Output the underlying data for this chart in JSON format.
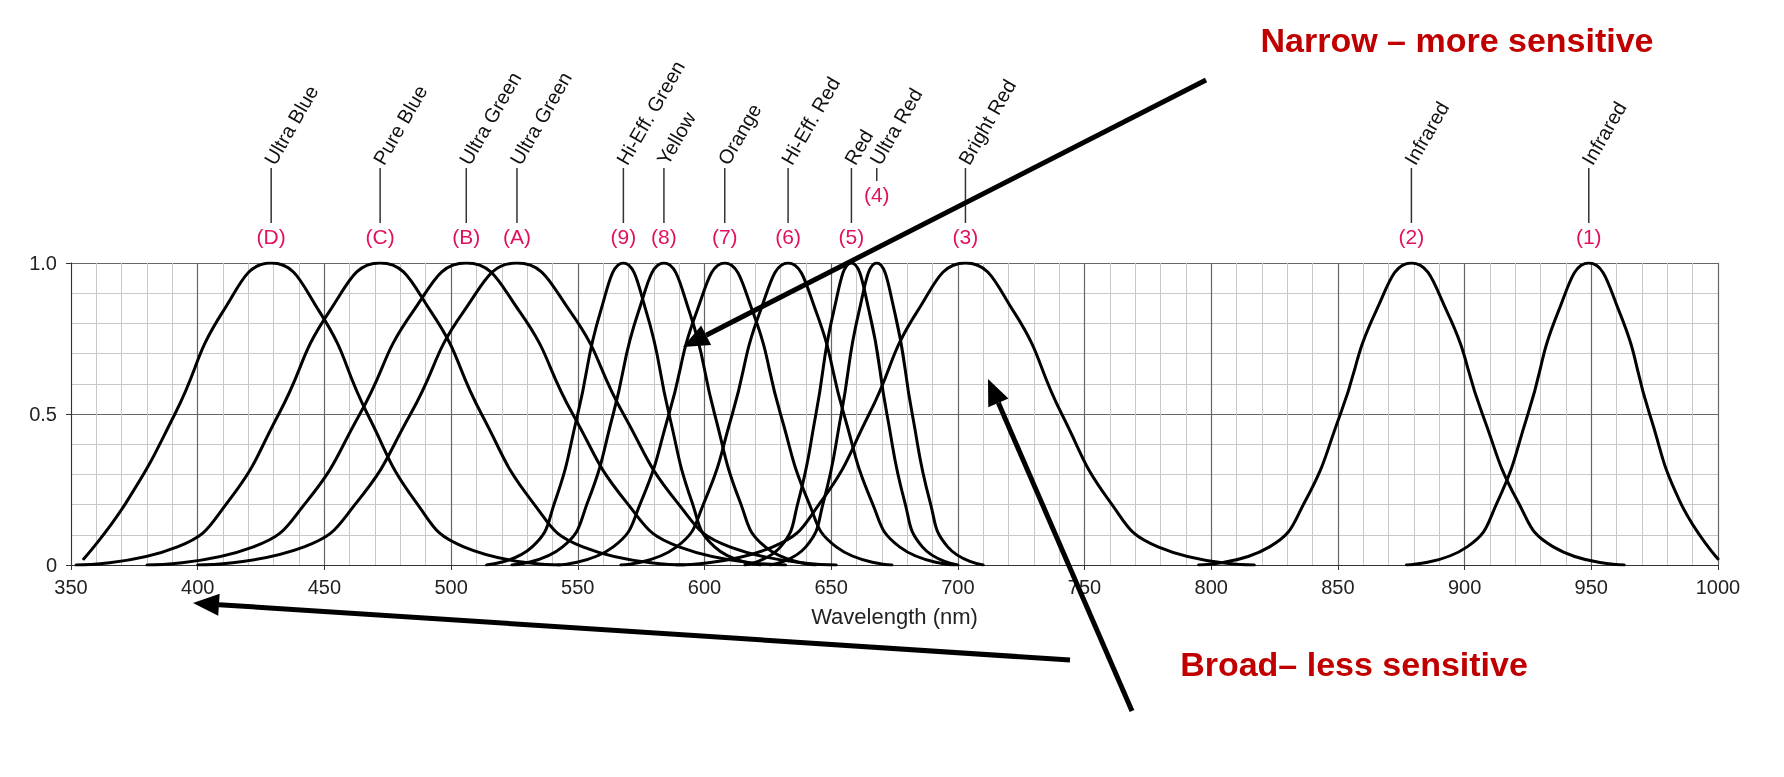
{
  "chart_data": {
    "type": "line",
    "xlabel": "Wavelength (nm)",
    "xlim": [
      350,
      1000
    ],
    "xticks": [
      350,
      400,
      450,
      500,
      550,
      600,
      650,
      700,
      750,
      800,
      850,
      900,
      950,
      1000
    ],
    "ylim": [
      0,
      1
    ],
    "yticks": [
      0,
      0.5,
      {
        "value": 1,
        "label": "1.0"
      }
    ],
    "grid": true,
    "series": [
      {
        "color": "#000000",
        "x": [
          355,
          372,
          391,
          410,
          429,
          448,
          467,
          486,
          505,
          543
        ],
        "values": [
          0.02,
          0.21,
          0.5,
          0.84,
          1,
          0.84,
          0.5,
          0.21,
          0.06,
          0
        ]
      },
      {
        "color": "#000000",
        "x": [
          352,
          392,
          412,
          432,
          452,
          472,
          492,
          512,
          532,
          552,
          592
        ],
        "values": [
          0,
          0.06,
          0.21,
          0.5,
          0.84,
          1,
          0.84,
          0.5,
          0.21,
          0.06,
          0
        ]
      },
      {
        "color": "#000000",
        "x": [
          380,
          422,
          443,
          464,
          485,
          506,
          527,
          548,
          569,
          590,
          632
        ],
        "values": [
          0,
          0.06,
          0.21,
          0.5,
          0.84,
          1,
          0.84,
          0.5,
          0.21,
          0.06,
          0
        ]
      },
      {
        "color": "#000000",
        "x": [
          400,
          442,
          463,
          484,
          505,
          526,
          547,
          568,
          589,
          610,
          652
        ],
        "values": [
          0,
          0.06,
          0.21,
          0.5,
          0.84,
          1,
          0.84,
          0.5,
          0.21,
          0.06,
          0
        ]
      },
      {
        "color": "#000000",
        "x": [
          514,
          532,
          541,
          550,
          559,
          568,
          577,
          586,
          595,
          604,
          622
        ],
        "values": [
          0,
          0.06,
          0.21,
          0.5,
          0.84,
          1,
          0.84,
          0.5,
          0.21,
          0.06,
          0
        ]
      },
      {
        "color": "#000000",
        "x": [
          524,
          544,
          554,
          564,
          574,
          584,
          594,
          604,
          614,
          624,
          644
        ],
        "values": [
          0,
          0.06,
          0.21,
          0.5,
          0.84,
          1,
          0.84,
          0.5,
          0.21,
          0.06,
          0
        ]
      },
      {
        "color": "#000000",
        "x": [
          542,
          564,
          575,
          586,
          597,
          608,
          619,
          630,
          641,
          652,
          674
        ],
        "values": [
          0,
          0.06,
          0.21,
          0.5,
          0.84,
          1,
          0.84,
          0.5,
          0.21,
          0.06,
          0
        ]
      },
      {
        "color": "#000000",
        "x": [
          567,
          589,
          600,
          611,
          622,
          633,
          644,
          655,
          666,
          677,
          699
        ],
        "values": [
          0,
          0.06,
          0.21,
          0.5,
          0.84,
          1,
          0.84,
          0.5,
          0.21,
          0.06,
          0
        ]
      },
      {
        "color": "#000000",
        "x": [
          616,
          630,
          637,
          644,
          651,
          658,
          665,
          672,
          679,
          686,
          700
        ],
        "values": [
          0,
          0.06,
          0.21,
          0.5,
          0.84,
          1,
          0.84,
          0.5,
          0.21,
          0.06,
          0
        ]
      },
      {
        "color": "#000000",
        "x": [
          626,
          640,
          647,
          654,
          661,
          668,
          675,
          682,
          689,
          696,
          710
        ],
        "values": [
          0,
          0.06,
          0.21,
          0.5,
          0.84,
          1,
          0.84,
          0.5,
          0.21,
          0.06,
          0
        ]
      },
      {
        "color": "#000000",
        "x": [
          589,
          627,
          646,
          665,
          684,
          703,
          722,
          741,
          760,
          779,
          817
        ],
        "values": [
          0,
          0.06,
          0.21,
          0.5,
          0.84,
          1,
          0.84,
          0.5,
          0.21,
          0.06,
          0
        ]
      },
      {
        "color": "#000000",
        "x": [
          795,
          823,
          837,
          851,
          865,
          879,
          893,
          907,
          921,
          935,
          963
        ],
        "values": [
          0,
          0.06,
          0.21,
          0.5,
          0.84,
          1,
          0.84,
          0.5,
          0.21,
          0.06,
          0
        ]
      },
      {
        "color": "#000000",
        "x": [
          877,
          901,
          913,
          925,
          937,
          949,
          961,
          973,
          985,
          1000
        ],
        "values": [
          0,
          0.06,
          0.21,
          0.5,
          0.84,
          1,
          0.84,
          0.5,
          0.21,
          0.02
        ]
      }
    ],
    "annotations": [
      {
        "text": "(D)",
        "x": 429,
        "y": 1
      },
      "Ultra Blue",
      {
        "text": "(C)",
        "x": 472,
        "y": 1
      },
      "Pure Blue",
      {
        "text": "(B)",
        "x": 506,
        "y": 1
      },
      "Ultra Green",
      {
        "text": "(A)",
        "x": 526,
        "y": 1
      },
      "Ultra Green",
      {
        "text": "(9)",
        "x": 568,
        "y": 1
      },
      "Hi-Eff. Green",
      {
        "text": "(8)",
        "x": 584,
        "y": 1
      },
      "Yellow",
      {
        "text": "(7)",
        "x": 608,
        "y": 1
      },
      "Orange",
      {
        "text": "(6)",
        "x": 633,
        "y": 1
      },
      "Hi-Eff. Red",
      {
        "text": "(5)",
        "x": 658,
        "y": 1
      },
      "Red",
      {
        "text": "(4)",
        "x": 668,
        "y": 1
      },
      "Ultra Red",
      {
        "text": "(3)",
        "x": 703,
        "y": 1
      },
      "Bright Red",
      {
        "text": "(2)",
        "x": 879,
        "y": 1
      },
      "Infrared",
      {
        "text": "(1)",
        "x": 949,
        "y": 1
      },
      "Infrared",
      "Narrow – more sensitive",
      "Broad– less sensitive"
    ]
  }
}
